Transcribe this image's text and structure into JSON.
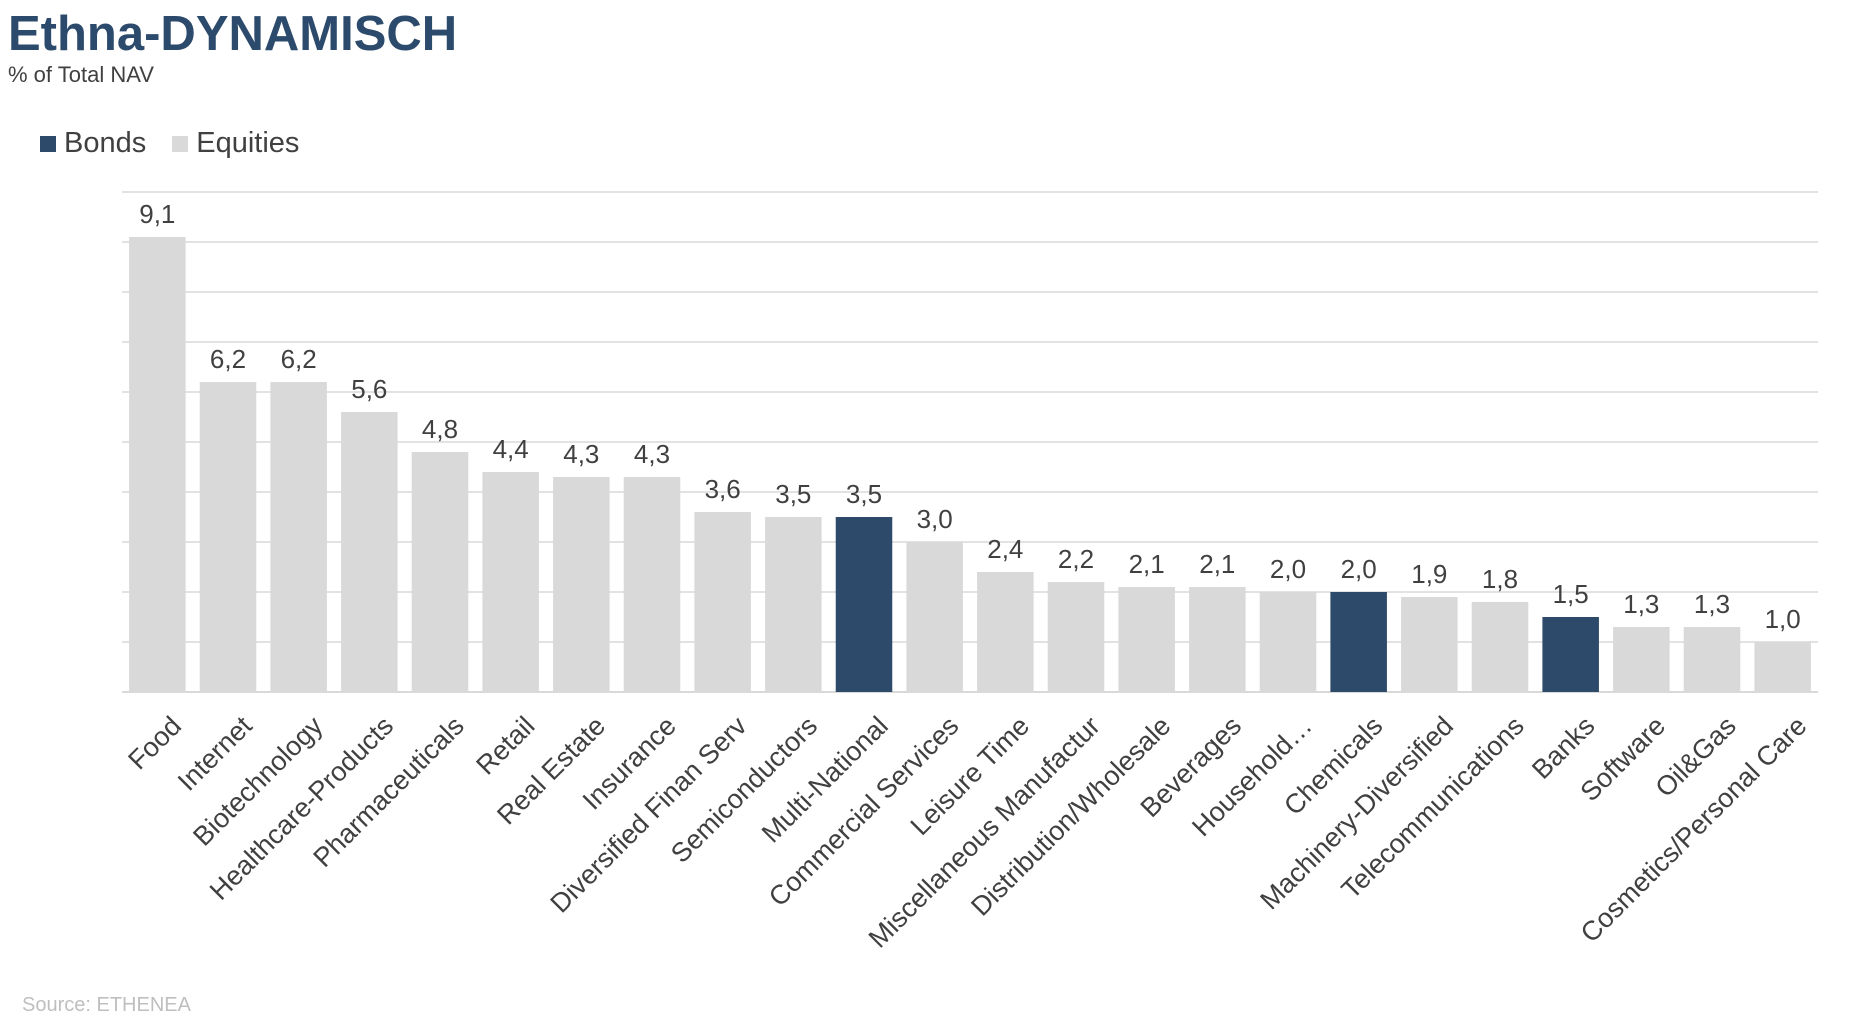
{
  "header": {
    "title": "Ethna-DYNAMISCH",
    "subtitle": "% of Total NAV"
  },
  "footer": {
    "source": "Source: ETHENEA"
  },
  "colors": {
    "bonds": "#2e4a6b",
    "equities": "#d9d9d9",
    "grid": "#d9d9d9",
    "text": "#404040"
  },
  "chart_data": {
    "type": "bar",
    "legend": {
      "placement": "top-left",
      "entries": [
        "Bonds",
        "Equities"
      ]
    },
    "grid": true,
    "ylim": [
      0,
      10
    ],
    "categories": [
      "Food",
      "Internet",
      "Biotechnology",
      "Healthcare-Products",
      "Pharmaceuticals",
      "Retail",
      "Real Estate",
      "Insurance",
      "Diversified Finan Serv",
      "Semiconductors",
      "Multi-National",
      "Commercial Services",
      "Leisure Time",
      "Miscellaneous Manufactur",
      "Distribution/Wholesale",
      "Beverages",
      "Household…",
      "Chemicals",
      "Machinery-Diversified",
      "Telecommunications",
      "Banks",
      "Software",
      "Oil&Gas",
      "Cosmetics/Personal Care"
    ],
    "values": [
      9.1,
      6.2,
      6.2,
      5.6,
      4.8,
      4.4,
      4.3,
      4.3,
      3.6,
      3.5,
      3.5,
      3.0,
      2.4,
      2.2,
      2.1,
      2.1,
      2.0,
      2.0,
      1.9,
      1.8,
      1.5,
      1.3,
      1.3,
      1.0
    ],
    "value_labels": [
      "9,1",
      "6,2",
      "6,2",
      "5,6",
      "4,8",
      "4,4",
      "4,3",
      "4,3",
      "3,6",
      "3,5",
      "3,5",
      "3,0",
      "2,4",
      "2,2",
      "2,1",
      "2,1",
      "2,0",
      "2,0",
      "1,9",
      "1,8",
      "1,5",
      "1,3",
      "1,3",
      "1,0"
    ],
    "series_assignment": [
      "Equities",
      "Equities",
      "Equities",
      "Equities",
      "Equities",
      "Equities",
      "Equities",
      "Equities",
      "Equities",
      "Equities",
      "Bonds",
      "Equities",
      "Equities",
      "Equities",
      "Equities",
      "Equities",
      "Equities",
      "Bonds",
      "Equities",
      "Equities",
      "Bonds",
      "Equities",
      "Equities",
      "Equities"
    ]
  }
}
